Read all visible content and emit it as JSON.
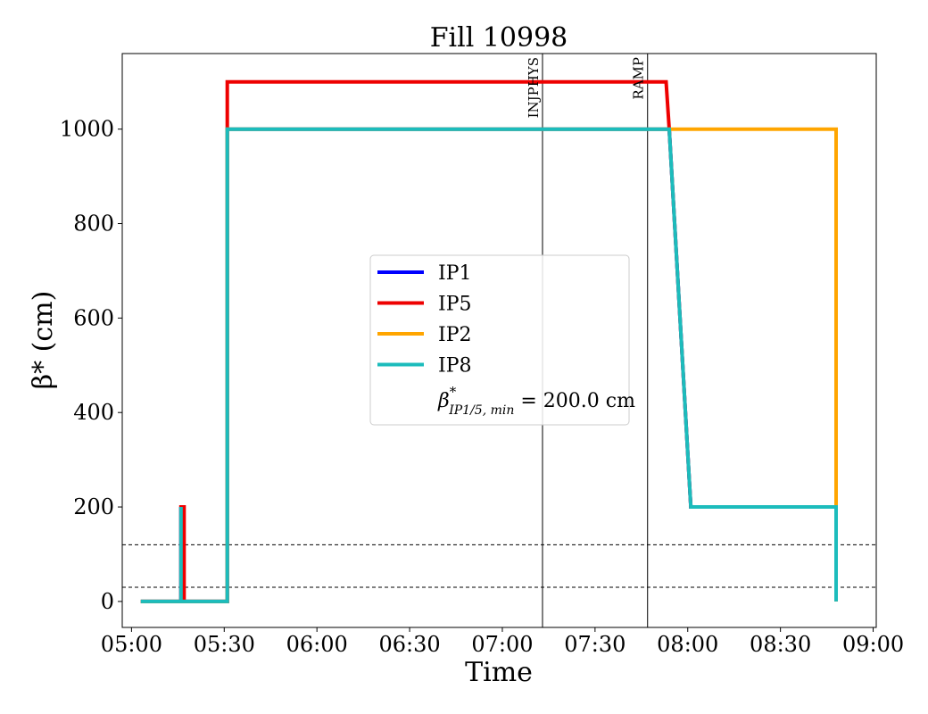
{
  "chart_data": {
    "type": "line",
    "title": "Fill 10998",
    "xlabel": "Time",
    "ylabel": "β* (cm)",
    "x_ticks": [
      "05:00",
      "05:30",
      "06:00",
      "06:30",
      "07:00",
      "07:30",
      "08:00",
      "08:30",
      "09:00"
    ],
    "y_ticks": [
      0,
      200,
      400,
      600,
      800,
      1000
    ],
    "xlim": [
      "04:57",
      "09:01"
    ],
    "ylim": [
      -55,
      1160
    ],
    "grid": false,
    "legend_position": "center",
    "series": [
      {
        "name": "IP1",
        "color": "#0000ff",
        "points": [
          [
            "05:03",
            0
          ],
          [
            "05:16",
            0
          ],
          [
            "05:16",
            200
          ],
          [
            "05:16",
            0
          ],
          [
            "05:31",
            0
          ],
          [
            "05:31",
            1000
          ],
          [
            "07:54",
            1000
          ],
          [
            "08:01",
            200
          ],
          [
            "08:48",
            200
          ],
          [
            "08:48",
            0
          ]
        ]
      },
      {
        "name": "IP5",
        "color": "#ee0000",
        "points": [
          [
            "05:03",
            0
          ],
          [
            "05:16",
            0
          ],
          [
            "05:16",
            200
          ],
          [
            "05:17",
            200
          ],
          [
            "05:17",
            0
          ],
          [
            "05:31",
            0
          ],
          [
            "05:31",
            1100
          ],
          [
            "07:53",
            1100
          ],
          [
            "07:54",
            1000
          ],
          [
            "08:01",
            200
          ],
          [
            "08:48",
            200
          ],
          [
            "08:48",
            0
          ]
        ]
      },
      {
        "name": "IP2",
        "color": "#ffa500",
        "points": [
          [
            "05:03",
            0
          ],
          [
            "05:31",
            0
          ],
          [
            "05:31",
            1000
          ],
          [
            "08:48",
            1000
          ],
          [
            "08:48",
            200
          ],
          [
            "08:48",
            0
          ]
        ]
      },
      {
        "name": "IP8",
        "color": "#1cbcbc",
        "points": [
          [
            "05:03",
            0
          ],
          [
            "05:16",
            0
          ],
          [
            "05:16",
            200
          ],
          [
            "05:16",
            0
          ],
          [
            "05:31",
            0
          ],
          [
            "05:31",
            1000
          ],
          [
            "07:54",
            1000
          ],
          [
            "08:01",
            200
          ],
          [
            "08:48",
            200
          ],
          [
            "08:48",
            0
          ]
        ]
      }
    ],
    "vertical_lines": [
      {
        "label": "INJPHYS",
        "x": "07:13"
      },
      {
        "label": "RAMP",
        "x": "07:47"
      }
    ],
    "horizontal_lines": [
      {
        "y": 120,
        "style": "dashed"
      },
      {
        "y": 30,
        "style": "dashed"
      }
    ],
    "legend_extra": {
      "main": "β",
      "sup": "*",
      "sub": "IP1/5, min",
      "value": " = 200.0 cm"
    }
  }
}
